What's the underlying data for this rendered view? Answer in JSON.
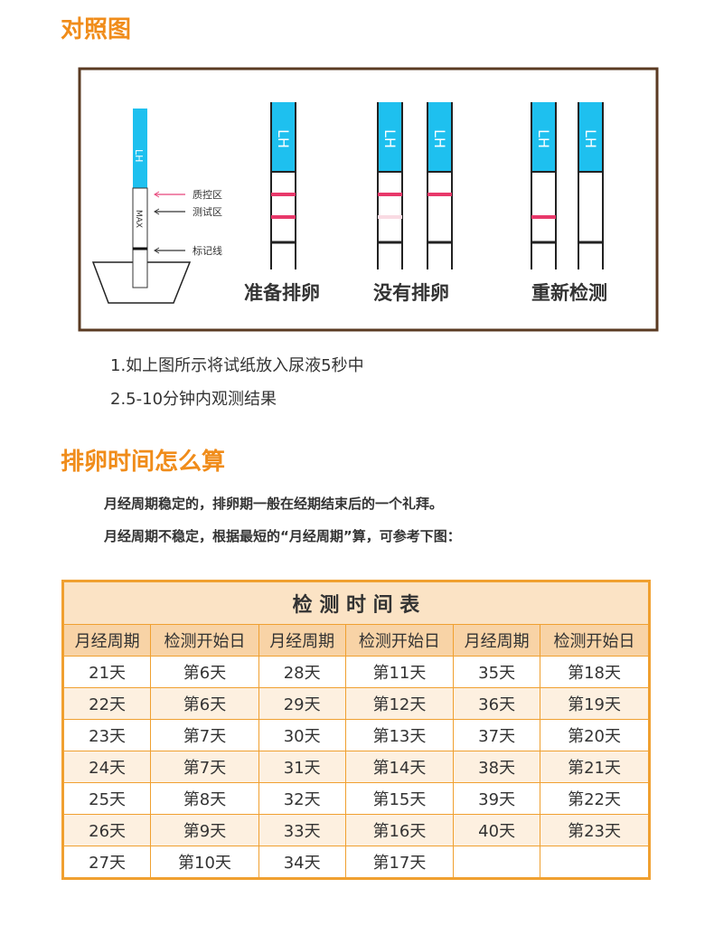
{
  "section1": {
    "title": "对照图",
    "strip_label": "LH",
    "max_label": "MAX",
    "zones": [
      "质控区",
      "测试区",
      "标记线"
    ],
    "results": [
      "准备排卵",
      "没有排卵",
      "重新检测"
    ],
    "steps": [
      "1.如上图所示将试纸放入尿液5秒中",
      "2.5-10分钟内观测结果"
    ]
  },
  "section2": {
    "title": "排卵时间怎么算",
    "paragraphs": [
      "月经周期稳定的，排卵期一般在经期结束后的一个礼拜。",
      "月经周期不稳定，根据最短的“月经周期”算，可参考下图："
    ]
  },
  "table": {
    "title": "检 测 时 间 表",
    "headers": [
      "月经周期",
      "检测开始日",
      "月经周期",
      "检测开始日",
      "月经周期",
      "检测开始日"
    ],
    "rows": [
      [
        "21天",
        "第6天",
        "28天",
        "第11天",
        "35天",
        "第18天"
      ],
      [
        "22天",
        "第6天",
        "29天",
        "第12天",
        "36天",
        "第19天"
      ],
      [
        "23天",
        "第7天",
        "30天",
        "第13天",
        "37天",
        "第20天"
      ],
      [
        "24天",
        "第7天",
        "31天",
        "第14天",
        "38天",
        "第21天"
      ],
      [
        "25天",
        "第8天",
        "32天",
        "第15天",
        "39天",
        "第22天"
      ],
      [
        "26天",
        "第9天",
        "33天",
        "第16天",
        "40天",
        "第23天"
      ],
      [
        "27天",
        "第10天",
        "34天",
        "第17天"
      ]
    ]
  }
}
